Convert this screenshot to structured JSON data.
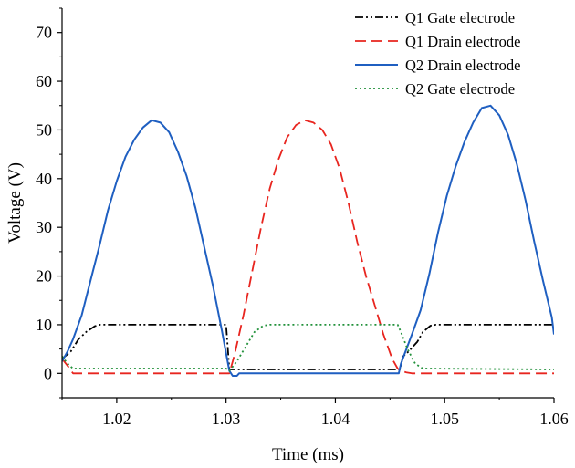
{
  "chart_data": {
    "type": "line",
    "title": "",
    "xlabel": "Time (ms)",
    "ylabel": "Voltage (V)",
    "xlim": [
      1.015,
      1.06
    ],
    "ylim": [
      -5,
      75
    ],
    "xticks": [
      1.02,
      1.03,
      1.04,
      1.05,
      1.06
    ],
    "xtick_labels": [
      "1.02",
      "1.03",
      "1.04",
      "1.05",
      "1.06"
    ],
    "yticks": [
      0,
      10,
      20,
      30,
      40,
      50,
      60,
      70
    ],
    "ytick_labels": [
      "0",
      "10",
      "20",
      "30",
      "40",
      "50",
      "60",
      "70"
    ],
    "grid": false,
    "legend_position": "top-right",
    "series": [
      {
        "name": "Q1 Gate electrode",
        "color": "#000000",
        "dash": "dash-dot-dot",
        "x": [
          1.015,
          1.0158,
          1.0165,
          1.0172,
          1.018,
          1.0185,
          1.03,
          1.0303,
          1.0308,
          1.0459,
          1.0462,
          1.0467,
          1.0475,
          1.048,
          1.0487,
          1.0492,
          1.06
        ],
        "y": [
          3,
          4.5,
          7,
          8.5,
          9.7,
          10,
          10,
          0.8,
          0.8,
          0.8,
          3.5,
          4.5,
          6.5,
          8.5,
          9.8,
          10,
          10
        ]
      },
      {
        "name": "Q1 Drain electrode",
        "color": "#e8251f",
        "dash": "dashed",
        "x": [
          1.015,
          1.0157,
          1.016,
          1.03,
          1.0303,
          1.0308,
          1.0316,
          1.0324,
          1.0332,
          1.034,
          1.0348,
          1.0356,
          1.0364,
          1.0372,
          1.038,
          1.0388,
          1.0396,
          1.0404,
          1.0412,
          1.042,
          1.0428,
          1.0436,
          1.0444,
          1.0452,
          1.0457,
          1.046,
          1.0465,
          1.047,
          1.06
        ],
        "y": [
          3,
          1,
          0,
          0,
          0,
          4,
          12,
          21,
          30,
          38,
          44,
          48.5,
          51,
          52,
          51.5,
          50,
          47,
          42,
          35,
          27,
          20,
          14,
          8,
          3,
          1,
          0.5,
          0.2,
          0,
          0
        ]
      },
      {
        "name": "Q2 Drain electrode",
        "color": "#1f5fc1",
        "dash": "solid",
        "x": [
          1.015,
          1.0155,
          1.016,
          1.0168,
          1.0176,
          1.0184,
          1.0192,
          1.02,
          1.0208,
          1.0216,
          1.0224,
          1.0232,
          1.024,
          1.0248,
          1.0256,
          1.0264,
          1.0272,
          1.028,
          1.0288,
          1.0296,
          1.0303,
          1.0306,
          1.031,
          1.0312,
          1.0458,
          1.046,
          1.0465,
          1.047,
          1.0478,
          1.0486,
          1.0494,
          1.0502,
          1.051,
          1.0518,
          1.0526,
          1.0534,
          1.0542,
          1.055,
          1.0558,
          1.0566,
          1.0574,
          1.0582,
          1.059,
          1.0598,
          1.06
        ],
        "y": [
          2.5,
          4.5,
          7,
          12,
          19,
          26,
          33.5,
          39.5,
          44.5,
          48,
          50.5,
          52,
          51.5,
          49.5,
          45.5,
          40.5,
          34,
          26,
          18,
          9,
          0.5,
          -0.5,
          -0.5,
          0,
          0,
          2,
          5,
          8,
          13,
          20.5,
          29,
          36.5,
          42.5,
          47.5,
          51.5,
          54.5,
          55,
          53,
          49,
          43,
          35.5,
          27,
          19,
          11.5,
          8
        ]
      },
      {
        "name": "Q2 Gate electrode",
        "color": "#21913a",
        "dash": "dotted",
        "x": [
          1.015,
          1.0155,
          1.016,
          1.03,
          1.0303,
          1.031,
          1.0318,
          1.0326,
          1.0334,
          1.034,
          1.0457,
          1.046,
          1.0466,
          1.0473,
          1.048,
          1.06
        ],
        "y": [
          3.5,
          2,
          1,
          1,
          0.5,
          2.5,
          5.5,
          8.5,
          9.8,
          10,
          10,
          8.5,
          5,
          2,
          1,
          0.8
        ]
      }
    ]
  }
}
